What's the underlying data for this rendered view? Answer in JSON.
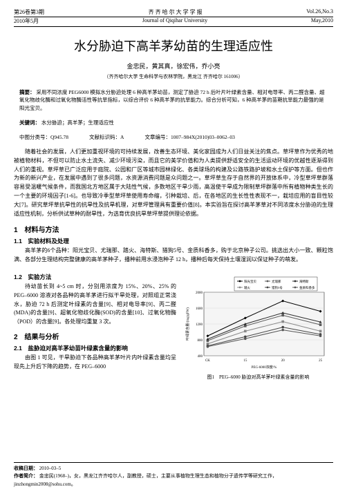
{
  "header": {
    "left1": "第26卷第3期",
    "center1": "齐 齐 哈 尔 大 学 学 报",
    "right1": "Vol.26,No.3",
    "left2": "2010年5月",
    "center2": "Journal of Qiqihar University",
    "right2": "May,2010"
  },
  "title": "水分胁迫下高羊茅幼苗的生理适应性",
  "authors": "金忠民，黄其真，徐宏伟，乔小亮",
  "affiliation": "（齐齐哈尔大学 生命科学与农林学院，黑龙江 齐齐哈尔 161006）",
  "abstract": {
    "label": "摘要：",
    "text": "采用不同浓度 PEG6000 模拟水分胁迫处理 6 种高羊茅幼苗，测定了胁迫 72 h 后叶片叶绿素含量、相对电导率、丙二醛含量、超氧化物歧化酶和过氧化物酶活性等抗旱指标，以综合评价 6 种高羊茅的抗旱能力。综合分析可知，6 种高羊茅的苗期抗旱能力最强的是阳光宝贝。"
  },
  "keywords": {
    "label": "关键词：",
    "text": "水分胁迫；高羊茅；生理适应性"
  },
  "classRow": {
    "a": "中图分类号：Q945.78",
    "b": "文献标识码：A",
    "c": "文章编号：1007–984X(2010)03–0062–03"
  },
  "intro": "随着社会的发展，人们更加重视环境的可持续发展，改善生态环境、美化家园成为人们日益关注的焦点。草坪草作为优秀的地被植物材料，不但可以防止水土流失、减少环境污染，而且它的美学价值和为人类提供舒适安全的生活运动环境的优越性逐渐得到人们的重视。草坪草已广泛应用于庭院、公园和厂区等城市园林绿化、各类球场的构建及公路铁路护坡和水土保护等方面。但也作为新的新兴产业，在发展中遇到了很多问题，水资源消费问题是众问题之一。草坪草生存于自然界的开放体系中，冷型草坪草群落容易受温暖气候条件，而我国北方地区属于大陆性气候，多数地区干旱少雨，高温使干旱成为限制草坪群落中所有植物种类生长的一个主要的环境因子[1-6]。也导致冷季型草坪草使用寿命缩，引种栽培、后，在各地区的生长性性表现不一，栽培应用的盲目性较大[7]。研究草坪草抗旱性的抗旱性及抗旱机理，对草坪管理具有重要价值[8]。本实验旨在探讨高羊茅草对不同浓度水分胁迫的生理适应性机制，分析供试草种的耐旱性，为选育优良抗旱草坪草提供理论依据。",
  "s1": "1　材料与方法",
  "s11": "1.1　实验材料及处理",
  "s11text": "高羊茅的6个品种：阳光宝贝、尤瑞那、踏火、海特斯、猎狗5号、金质科香多，购于北京种子公司。挑选出大小一致、颗粒饱满、各部分生理结构完整健康的高羊茅种子，播种前用水浸泡种子 12 h，播种后每天保持土壤湿润以保证种子的萌发。",
  "s12": "1.2　实验方法",
  "s12text": "待幼苗长到 4~5 cm 时，分别用浓度为 15%、20%、25% 的 PEG–6000 溶液对各品种的高羊茅进行拟干旱处理，对照组正常浇水，胁迫 72 h 后测定叶绿素的含量[9]、相对电导率[9]、丙二醛(MDA)的含量[9]、超氧化物歧化酶(SOD)的含量[10]、过氧化物酶（POD）的含量[9]。各处理均重复 3 次。",
  "s2": "2　结果与分析",
  "s21": "2.1　盐胁迫对高羊茅幼苗叶绿素含量的影响",
  "s21text": "由图 1 可见，干旱胁迫下各品种高羊茅叶片内叶绿素含量均呈现先上升后下降的趋势，在 PEG–6000",
  "chart": {
    "type": "line",
    "x_categories": [
      "CK",
      "15",
      "20",
      "25"
    ],
    "x_label_ext": "PEG-6000浓度/%",
    "y_label": "叶绿素含量/(mg/gFW)",
    "ylim": [
      400,
      2000
    ],
    "yticks": [
      400,
      800,
      1200,
      1600,
      2000
    ],
    "grid_color": "#d0d0d0",
    "plot_bg": "#f5f5f5",
    "legend_bg": "#ffffff",
    "legend_border": "#000000",
    "series": [
      {
        "name": "阳光宝贝",
        "color": "#000000",
        "marker": "diamond",
        "values": [
          900,
          1350,
          1780,
          1520
        ]
      },
      {
        "name": "尤瑞那",
        "color": "#5a5a5a",
        "marker": "square",
        "values": [
          780,
          1150,
          1420,
          1180
        ]
      },
      {
        "name": "海特斯",
        "color": "#2a2a2a",
        "marker": "triangle",
        "values": [
          820,
          1200,
          1480,
          1250
        ]
      },
      {
        "name": "踏火",
        "color": "#888888",
        "marker": "square",
        "values": [
          700,
          1020,
          1260,
          1020
        ]
      },
      {
        "name": "猎狗5号",
        "color": "#444444",
        "marker": "circle",
        "values": [
          650,
          880,
          1120,
          940
        ]
      },
      {
        "name": "金质科香多",
        "color": "#555555",
        "marker": "circle",
        "values": [
          630,
          830,
          1050,
          900
        ]
      }
    ],
    "caption": "图1　PEG–6000 胁迫对高羊茅叶绿素含量的影响"
  },
  "footer": {
    "recvLabel": "收稿日期：",
    "recv": "2010–03–5",
    "authorLabel": "作者简介：",
    "author": "金忠民(1968–)，女，黑龙江齐齐哈尔人，副教授，硕士，主要从事植物生理生态和植物分子遗传学等研究工作，jinzhongmin2008@sohu.com。"
  }
}
